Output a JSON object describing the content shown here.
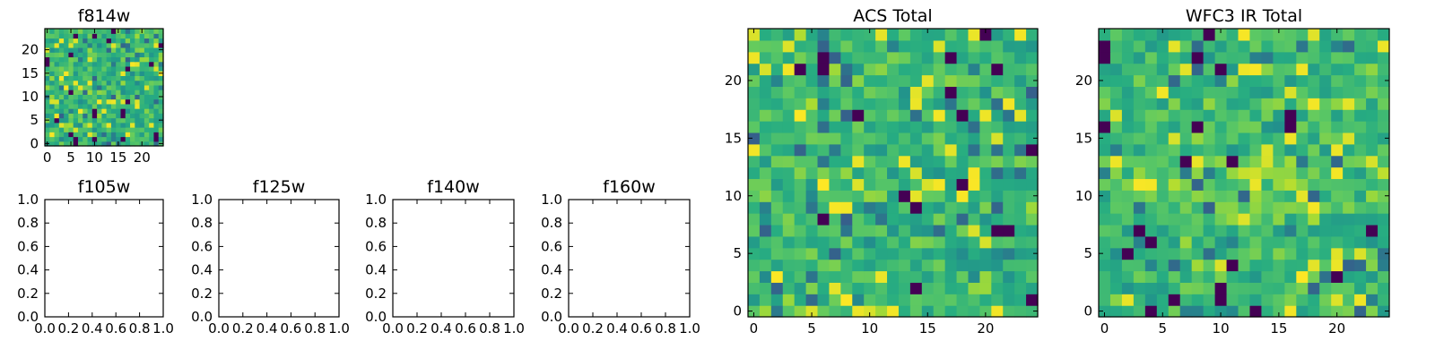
{
  "figure": {
    "colormap": [
      "#440154",
      "#3b528b",
      "#21918c",
      "#27ad81",
      "#5ec962",
      "#aadc32",
      "#fde725"
    ],
    "axes_background": "#ffffff",
    "frame_color": "#000000"
  },
  "chart_data": [
    {
      "id": "f814w",
      "type": "heatmap",
      "title": "f814w",
      "grid_size": [
        25,
        25
      ],
      "xlim": [
        -0.5,
        24.5
      ],
      "ylim": [
        -0.5,
        24.5
      ],
      "xticks": [
        0,
        5,
        10,
        15,
        20
      ],
      "yticks": [
        0,
        5,
        10,
        15,
        20
      ],
      "xtick_labels": [
        "0",
        "5",
        "10",
        "15",
        "20"
      ],
      "ytick_labels": [
        "0",
        "5",
        "10",
        "15",
        "20"
      ],
      "value_range": [
        0,
        1
      ],
      "seed": 814,
      "distribution": "speckled noise, mostly green/yellow with scattered dark purple pixels",
      "grid": false
    },
    {
      "id": "f105w",
      "type": "heatmap",
      "title": "f105w",
      "empty": true,
      "xlim": [
        0,
        1
      ],
      "ylim": [
        0,
        1
      ],
      "xticks": [
        0,
        0.2,
        0.4,
        0.6,
        0.8,
        1.0
      ],
      "yticks": [
        0,
        0.2,
        0.4,
        0.6,
        0.8,
        1.0
      ],
      "xtick_labels": [
        "0.0",
        "0.2",
        "0.4",
        "0.6",
        "0.8",
        "1.0"
      ],
      "ytick_labels": [
        "0.0",
        "0.2",
        "0.4",
        "0.6",
        "0.8",
        "1.0"
      ],
      "grid": false
    },
    {
      "id": "f125w",
      "type": "heatmap",
      "title": "f125w",
      "empty": true,
      "xlim": [
        0,
        1
      ],
      "ylim": [
        0,
        1
      ],
      "xticks": [
        0,
        0.2,
        0.4,
        0.6,
        0.8,
        1.0
      ],
      "yticks": [
        0,
        0.2,
        0.4,
        0.6,
        0.8,
        1.0
      ],
      "xtick_labels": [
        "0.0",
        "0.2",
        "0.4",
        "0.6",
        "0.8",
        "1.0"
      ],
      "ytick_labels": [
        "0.0",
        "0.2",
        "0.4",
        "0.6",
        "0.8",
        "1.0"
      ],
      "grid": false
    },
    {
      "id": "f140w",
      "type": "heatmap",
      "title": "f140w",
      "empty": true,
      "xlim": [
        0,
        1
      ],
      "ylim": [
        0,
        1
      ],
      "xticks": [
        0,
        0.2,
        0.4,
        0.6,
        0.8,
        1.0
      ],
      "yticks": [
        0,
        0.2,
        0.4,
        0.6,
        0.8,
        1.0
      ],
      "xtick_labels": [
        "0.0",
        "0.2",
        "0.4",
        "0.6",
        "0.8",
        "1.0"
      ],
      "ytick_labels": [
        "0.0",
        "0.2",
        "0.4",
        "0.6",
        "0.8",
        "1.0"
      ],
      "grid": false
    },
    {
      "id": "f160w",
      "type": "heatmap",
      "title": "f160w",
      "empty": true,
      "xlim": [
        0,
        1
      ],
      "ylim": [
        0,
        1
      ],
      "xticks": [
        0,
        0.2,
        0.4,
        0.6,
        0.8,
        1.0
      ],
      "yticks": [
        0,
        0.2,
        0.4,
        0.6,
        0.8,
        1.0
      ],
      "xtick_labels": [
        "0.0",
        "0.2",
        "0.4",
        "0.6",
        "0.8",
        "1.0"
      ],
      "ytick_labels": [
        "0.0",
        "0.2",
        "0.4",
        "0.6",
        "0.8",
        "1.0"
      ],
      "grid": false
    },
    {
      "id": "acs-total",
      "type": "heatmap",
      "title": "ACS Total",
      "grid_size": [
        25,
        25
      ],
      "xlim": [
        -0.5,
        24.5
      ],
      "ylim": [
        -0.5,
        24.5
      ],
      "xticks": [
        0,
        5,
        10,
        15,
        20
      ],
      "yticks": [
        0,
        5,
        10,
        15,
        20
      ],
      "xtick_labels": [
        "0",
        "5",
        "10",
        "15",
        "20"
      ],
      "ytick_labels": [
        "0",
        "5",
        "10",
        "15",
        "20"
      ],
      "value_range": [
        0,
        1
      ],
      "seed": 2718,
      "distribution": "noise field, mostly green with yellow patches and a few dark purple pixels",
      "grid": false
    },
    {
      "id": "wfc3-ir-total",
      "type": "heatmap",
      "title": "WFC3 IR Total",
      "grid_size": [
        25,
        25
      ],
      "xlim": [
        -0.5,
        24.5
      ],
      "ylim": [
        -0.5,
        24.5
      ],
      "xticks": [
        0,
        5,
        10,
        15,
        20
      ],
      "yticks": [
        0,
        5,
        10,
        15,
        20
      ],
      "xtick_labels": [
        "0",
        "5",
        "10",
        "15",
        "20"
      ],
      "ytick_labels": [
        "0",
        "5",
        "10",
        "15",
        "20"
      ],
      "value_range": [
        0,
        1
      ],
      "seed": 3141,
      "distribution": "noise field, mostly green with a bright band near rows 9-13 and a few dark purple pixels",
      "grid": false
    }
  ]
}
